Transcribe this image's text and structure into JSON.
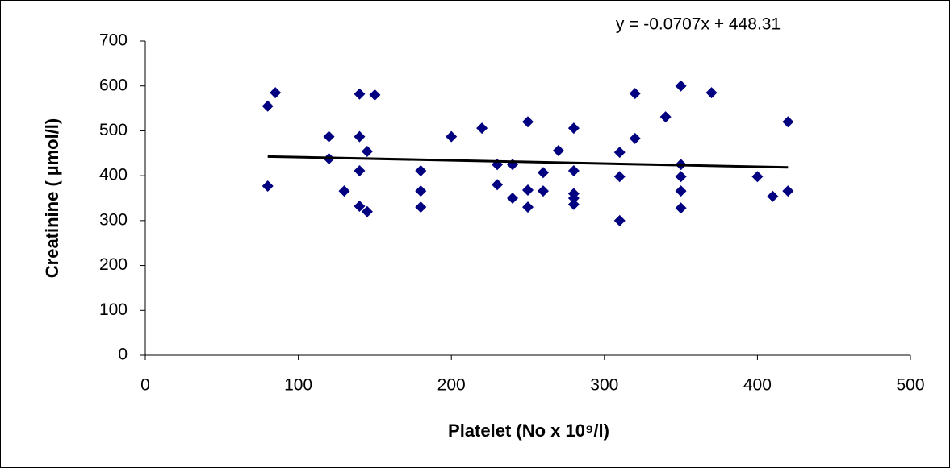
{
  "chart_data": {
    "type": "scatter",
    "annotation": "y = -0.0707x + 448.31",
    "trendline": {
      "slope": -0.0707,
      "intercept": 448.31
    },
    "x_label": "Platelet (No x 10⁹/l)",
    "y_label": "Creatinine ( µmol/l)",
    "color": "#000080",
    "x": [
      80,
      85,
      80,
      120,
      120,
      130,
      140,
      140,
      140,
      140,
      145,
      145,
      150,
      180,
      180,
      180,
      200,
      220,
      230,
      230,
      240,
      240,
      250,
      250,
      250,
      260,
      260,
      270,
      280,
      280,
      280,
      280,
      280,
      310,
      310,
      310,
      320,
      320,
      340,
      350,
      350,
      350,
      350,
      350,
      370,
      400,
      410,
      420,
      420
    ],
    "values": [
      555,
      585,
      377,
      487,
      438,
      366,
      582,
      487,
      411,
      332,
      454,
      320,
      580,
      411,
      366,
      330,
      487,
      506,
      380,
      425,
      425,
      350,
      520,
      368,
      330,
      407,
      366,
      456,
      506,
      411,
      360,
      350,
      336,
      452,
      398,
      300,
      583,
      483,
      531,
      600,
      425,
      398,
      366,
      328,
      585,
      398,
      354,
      520,
      366
    ],
    "xlim": [
      0,
      500
    ],
    "xticks": [
      0,
      100,
      200,
      300,
      400,
      500
    ],
    "ylim": [
      0,
      700
    ],
    "yticks": [
      0,
      100,
      200,
      300,
      400,
      500,
      600,
      700
    ]
  }
}
